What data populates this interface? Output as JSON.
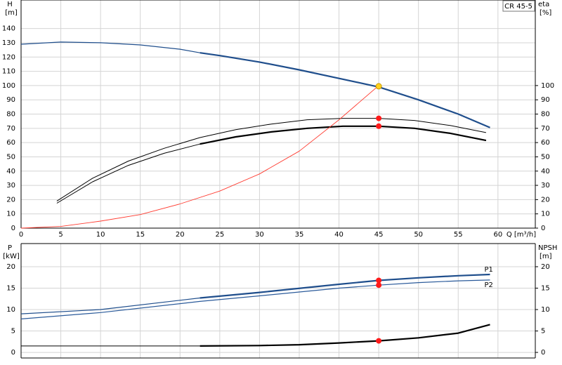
{
  "chart_data": [
    {
      "type": "line",
      "ylabel": "H",
      "yunit": "[m]",
      "y2label": "eta",
      "y2unit": "[%]",
      "xlabel": "Q [m³/h]",
      "product": "CR 45-5",
      "xlim": [
        0,
        64.7
      ],
      "xticks": [
        0,
        5,
        10,
        15,
        20,
        25,
        30,
        35,
        40,
        45,
        50,
        55,
        60
      ],
      "xtick_labels": true,
      "ylim": [
        0,
        160
      ],
      "yticks": [
        0,
        10,
        20,
        30,
        40,
        50,
        60,
        70,
        80,
        90,
        100,
        110,
        120,
        130,
        140
      ],
      "y2lim": [
        0,
        160
      ],
      "y2ticks": [
        0,
        10,
        20,
        30,
        40,
        50,
        60,
        70,
        80,
        90,
        100
      ],
      "grid": true,
      "series": [
        {
          "color": "#1f4e8c",
          "width": 1.2,
          "x": [
            0,
            5,
            10,
            15,
            20,
            22.5
          ],
          "values": [
            129,
            130.5,
            130,
            128.5,
            125.5,
            123
          ]
        },
        {
          "color": "#1f4e8c",
          "width": 2.2,
          "x": [
            22.5,
            25,
            30,
            35,
            40,
            45,
            50,
            55,
            59
          ],
          "values": [
            123,
            121,
            116.5,
            111,
            105,
            99,
            90,
            80,
            70.5
          ]
        },
        {
          "color": "#000000",
          "width": 1,
          "axis": "y2",
          "x": [
            4.5,
            9,
            13.5,
            18,
            22.5,
            27,
            31.5,
            36,
            40.5,
            45,
            49.5,
            54,
            58.5
          ],
          "values": [
            19,
            35,
            47,
            56,
            63.5,
            69,
            73,
            76,
            77,
            77,
            75.5,
            72,
            67
          ]
        },
        {
          "color": "#000000",
          "width": 1,
          "axis": "y2",
          "x": [
            4.5,
            9,
            13.5,
            18,
            22.5,
            27,
            31.5,
            36,
            40.5,
            45,
            49.5,
            54,
            58.5
          ],
          "values": [
            17.5,
            32.5,
            44,
            52.5,
            59,
            64,
            67.5,
            70,
            71.5,
            71.5,
            70,
            66.5,
            61.5
          ]
        },
        {
          "color": "#000000",
          "width": 2.2,
          "axis": "y2",
          "x": [
            22.5,
            27,
            31.5,
            36,
            40.5,
            45,
            49.5,
            54,
            58.5
          ],
          "values": [
            59,
            64,
            67.5,
            70,
            71.5,
            71.5,
            70,
            66.5,
            61.5
          ]
        },
        {
          "color": "#ff3b30",
          "width": 0.9,
          "x": [
            0,
            5,
            10,
            15,
            20,
            25,
            30,
            35,
            40,
            45
          ],
          "values": [
            0,
            1.2,
            4.9,
            9.5,
            17,
            26,
            38,
            54,
            76,
            100
          ]
        },
        {
          "color": "#ff1a1a",
          "marker": true,
          "axis": "y2",
          "x": [
            45,
            45
          ],
          "values": [
            77,
            71.5
          ]
        },
        {
          "color": "#ffd21f",
          "marker": true,
          "x": [
            45
          ],
          "values": [
            99.5
          ]
        }
      ]
    },
    {
      "type": "line",
      "ylabel": "P",
      "yunit": "[kW]",
      "y2label": "NPSH",
      "y2unit": "[m]",
      "xlim": [
        0,
        64.7
      ],
      "xticks": [
        0,
        5,
        10,
        15,
        20,
        25,
        30,
        35,
        40,
        45,
        50,
        55,
        60
      ],
      "xtick_labels": false,
      "ylim": [
        -1.3,
        25.4
      ],
      "yticks": [
        0,
        5,
        10,
        15,
        20
      ],
      "y2lim": [
        -1.3,
        25.4
      ],
      "y2ticks": [
        0,
        5,
        10,
        15,
        20
      ],
      "grid": true,
      "series": [
        {
          "color": "#1f4e8c",
          "width": 1.2,
          "x": [
            0,
            10,
            22.5
          ],
          "values": [
            9,
            10,
            12.7
          ]
        },
        {
          "name": "P1",
          "color": "#1f4e8c",
          "width": 2.2,
          "x": [
            22.5,
            30,
            40,
            45,
            50,
            55,
            59
          ],
          "values": [
            12.7,
            14,
            15.9,
            16.8,
            17.4,
            17.9,
            18.2
          ]
        },
        {
          "name": "P2",
          "color": "#2a5a9a",
          "width": 1.2,
          "x": [
            0,
            10,
            22.5,
            30,
            40,
            45,
            50,
            55,
            59
          ],
          "values": [
            7.8,
            9.3,
            11.9,
            13.2,
            15,
            15.7,
            16.3,
            16.7,
            16.9
          ]
        },
        {
          "color": "#000000",
          "width": 1,
          "axis": "y2",
          "x": [
            0,
            22.5
          ],
          "values": [
            1.5,
            1.5
          ]
        },
        {
          "color": "#000000",
          "width": 2.2,
          "axis": "y2",
          "x": [
            22.5,
            30,
            35,
            40,
            45,
            50,
            55,
            59
          ],
          "values": [
            1.5,
            1.6,
            1.8,
            2.2,
            2.7,
            3.4,
            4.5,
            6.5
          ]
        },
        {
          "color": "#ff1a1a",
          "marker": true,
          "x": [
            45,
            45
          ],
          "values": [
            16.8,
            15.7
          ]
        },
        {
          "color": "#ff1a1a",
          "marker": true,
          "axis": "y2",
          "x": [
            45
          ],
          "values": [
            2.7
          ]
        }
      ]
    }
  ]
}
